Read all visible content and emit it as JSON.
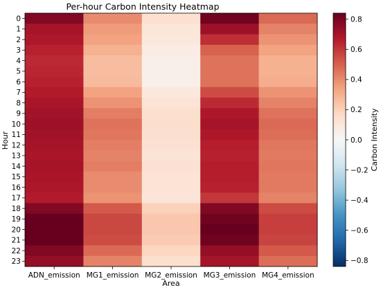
{
  "chart_data": {
    "type": "heatmap",
    "title": "Per-hour Carbon Intensity Heatmap",
    "xlabel": "Area",
    "ylabel": "Hour",
    "colorbar_label": "Carbon Intensity",
    "colormap": "RdBu_r",
    "vmin": -0.84,
    "vmax": 0.84,
    "colorbar_ticks": [
      "0.8",
      "0.6",
      "0.4",
      "0.2",
      "0.0",
      "−0.2",
      "−0.4",
      "−0.6",
      "−0.8"
    ],
    "colorbar_tick_values": [
      0.8,
      0.6,
      0.4,
      0.2,
      0.0,
      -0.2,
      -0.4,
      -0.6,
      -0.8
    ],
    "x": [
      "ADN_emission",
      "MG1_emission",
      "MG2_emission",
      "MG3_emission",
      "MG4_emission"
    ],
    "y": [
      "0",
      "1",
      "2",
      "3",
      "4",
      "5",
      "6",
      "7",
      "8",
      "9",
      "10",
      "11",
      "12",
      "13",
      "14",
      "15",
      "16",
      "17",
      "18",
      "19",
      "20",
      "21",
      "22",
      "23"
    ],
    "values": [
      [
        0.78,
        0.4,
        0.13,
        0.82,
        0.48
      ],
      [
        0.7,
        0.36,
        0.1,
        0.72,
        0.42
      ],
      [
        0.68,
        0.34,
        0.09,
        0.62,
        0.38
      ],
      [
        0.65,
        0.3,
        0.07,
        0.5,
        0.34
      ],
      [
        0.63,
        0.26,
        0.05,
        0.46,
        0.3
      ],
      [
        0.64,
        0.26,
        0.05,
        0.46,
        0.3
      ],
      [
        0.65,
        0.27,
        0.05,
        0.46,
        0.31
      ],
      [
        0.67,
        0.34,
        0.09,
        0.55,
        0.38
      ],
      [
        0.69,
        0.38,
        0.12,
        0.63,
        0.42
      ],
      [
        0.71,
        0.43,
        0.14,
        0.68,
        0.46
      ],
      [
        0.72,
        0.46,
        0.15,
        0.7,
        0.48
      ],
      [
        0.71,
        0.45,
        0.14,
        0.68,
        0.47
      ],
      [
        0.7,
        0.43,
        0.13,
        0.66,
        0.45
      ],
      [
        0.69,
        0.42,
        0.12,
        0.65,
        0.44
      ],
      [
        0.7,
        0.43,
        0.13,
        0.66,
        0.45
      ],
      [
        0.69,
        0.4,
        0.12,
        0.66,
        0.44
      ],
      [
        0.68,
        0.4,
        0.12,
        0.65,
        0.44
      ],
      [
        0.67,
        0.38,
        0.11,
        0.6,
        0.42
      ],
      [
        0.78,
        0.52,
        0.2,
        0.78,
        0.55
      ],
      [
        0.84,
        0.56,
        0.23,
        0.82,
        0.58
      ],
      [
        0.86,
        0.56,
        0.23,
        0.84,
        0.58
      ],
      [
        0.84,
        0.55,
        0.22,
        0.82,
        0.57
      ],
      [
        0.78,
        0.48,
        0.18,
        0.74,
        0.52
      ],
      [
        0.74,
        0.42,
        0.14,
        0.7,
        0.47
      ]
    ]
  }
}
